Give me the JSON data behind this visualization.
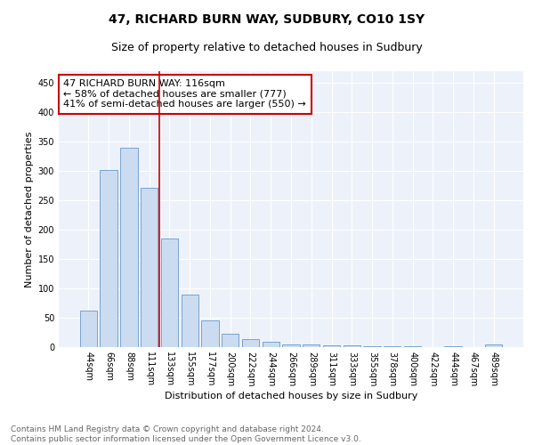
{
  "title": "47, RICHARD BURN WAY, SUDBURY, CO10 1SY",
  "subtitle": "Size of property relative to detached houses in Sudbury",
  "xlabel": "Distribution of detached houses by size in Sudbury",
  "ylabel": "Number of detached properties",
  "bar_labels": [
    "44sqm",
    "66sqm",
    "88sqm",
    "111sqm",
    "133sqm",
    "155sqm",
    "177sqm",
    "200sqm",
    "222sqm",
    "244sqm",
    "266sqm",
    "289sqm",
    "311sqm",
    "333sqm",
    "355sqm",
    "378sqm",
    "400sqm",
    "422sqm",
    "444sqm",
    "467sqm",
    "489sqm"
  ],
  "bar_values": [
    62,
    301,
    340,
    272,
    185,
    90,
    45,
    23,
    13,
    9,
    5,
    4,
    3,
    3,
    2,
    2,
    1,
    0,
    1,
    0,
    4
  ],
  "bar_color": "#ccdcf0",
  "bar_edge_color": "#6699cc",
  "vline_color": "#cc0000",
  "vline_x": 3.5,
  "annotation_text": "47 RICHARD BURN WAY: 116sqm\n← 58% of detached houses are smaller (777)\n41% of semi-detached houses are larger (550) →",
  "annotation_box_color": "#ffffff",
  "annotation_box_edge": "#cc0000",
  "ylim": [
    0,
    470
  ],
  "yticks": [
    0,
    50,
    100,
    150,
    200,
    250,
    300,
    350,
    400,
    450
  ],
  "footer_text": "Contains HM Land Registry data © Crown copyright and database right 2024.\nContains public sector information licensed under the Open Government Licence v3.0.",
  "bg_color": "#edf2fa",
  "grid_color": "#ffffff",
  "title_fontsize": 10,
  "subtitle_fontsize": 9,
  "xlabel_fontsize": 8,
  "ylabel_fontsize": 8,
  "tick_fontsize": 7,
  "annotation_fontsize": 8,
  "footer_fontsize": 6.5
}
